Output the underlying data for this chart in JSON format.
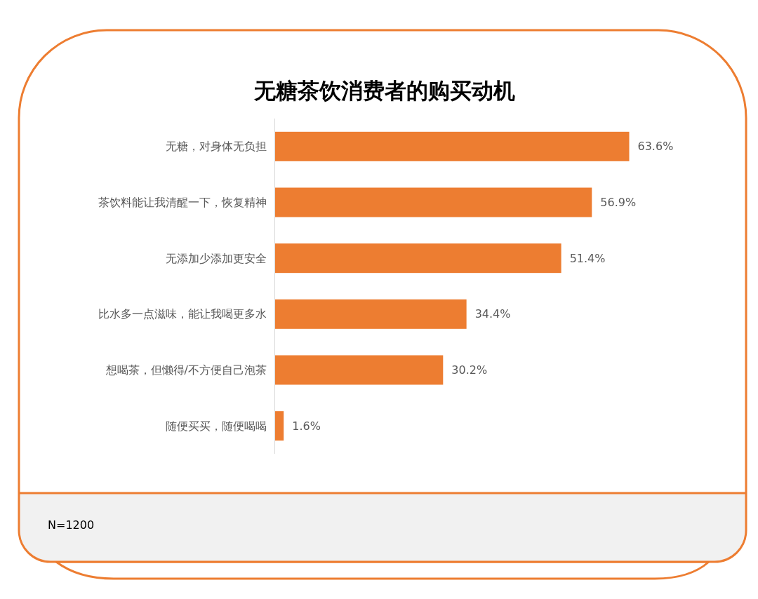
{
  "chart_data": {
    "type": "bar",
    "orientation": "horizontal",
    "title": "无糖茶饮消费者的购买动机",
    "categories": [
      "无糖，对身体无负担",
      "茶饮料能让我清醒一下，恢复精神",
      "无添加少添加更安全",
      "比水多一点滋味，能让我喝更多水",
      "想喝茶，但懒得/不方便自己泡茶",
      "随便买买，随便喝喝"
    ],
    "values": [
      63.6,
      56.9,
      51.4,
      34.4,
      30.2,
      1.6
    ],
    "value_labels": [
      "63.6%",
      "56.9%",
      "51.4%",
      "34.4%",
      "30.2%",
      "1.6%"
    ],
    "color": "#ed7d31",
    "tick_labels": "y",
    "annotations": [
      "N=1200"
    ]
  }
}
